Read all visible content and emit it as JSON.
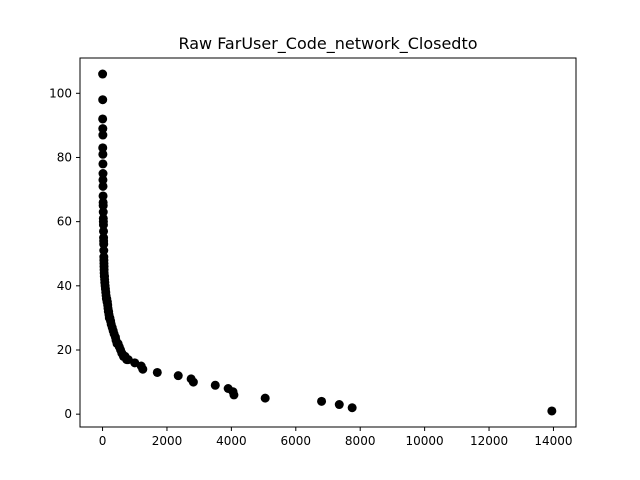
{
  "chart_data": {
    "type": "scatter",
    "title": "Raw FarUser_Code_network_Closedto",
    "xlabel": "",
    "ylabel": "",
    "xlim": [
      -700,
      14700
    ],
    "ylim": [
      -4,
      111
    ],
    "xticks": [
      0,
      2000,
      4000,
      6000,
      8000,
      10000,
      12000,
      14000
    ],
    "xtick_labels": [
      "0",
      "2000",
      "4000",
      "6000",
      "8000",
      "10000",
      "12000",
      "14000"
    ],
    "yticks": [
      0,
      20,
      40,
      60,
      80,
      100
    ],
    "ytick_labels": [
      "0",
      "20",
      "40",
      "60",
      "80",
      "100"
    ],
    "grid": false,
    "marker_color": "#000000",
    "series": [
      {
        "x": [
          2,
          5,
          4,
          8,
          10,
          6,
          10,
          12,
          14,
          12,
          14,
          16,
          18,
          20,
          22,
          24,
          26,
          28,
          30,
          32,
          34,
          36,
          38,
          40,
          42,
          44,
          46,
          48,
          50,
          55,
          60,
          65,
          70,
          80,
          90,
          100,
          110,
          120,
          130,
          140,
          150,
          160,
          170,
          180,
          190,
          200,
          210,
          230,
          250,
          270,
          300,
          330,
          360,
          400,
          420,
          450,
          480,
          520,
          560,
          600,
          650,
          700,
          750,
          800,
          1000,
          1200,
          1250,
          1700,
          2350,
          2750,
          2820,
          3500,
          3900,
          4050,
          4080,
          5050,
          6800,
          7350,
          7750,
          13950
        ],
        "y": [
          106,
          98,
          92,
          89,
          87,
          83,
          81,
          78,
          75,
          73,
          71,
          68,
          66,
          65,
          63,
          61,
          60,
          59,
          57,
          55,
          54,
          53,
          51,
          49,
          48,
          47,
          46,
          45,
          44,
          43,
          43,
          42,
          41,
          40,
          39,
          38,
          37,
          36,
          36,
          35,
          35,
          34,
          33,
          32,
          32,
          31,
          30,
          30,
          29,
          28,
          27,
          26,
          25,
          24,
          23,
          22,
          22,
          21,
          20,
          19,
          18,
          18,
          17,
          17,
          16,
          15,
          14,
          13,
          12,
          11,
          10,
          9,
          8,
          7,
          6,
          5,
          4,
          3,
          2,
          1
        ]
      }
    ]
  }
}
